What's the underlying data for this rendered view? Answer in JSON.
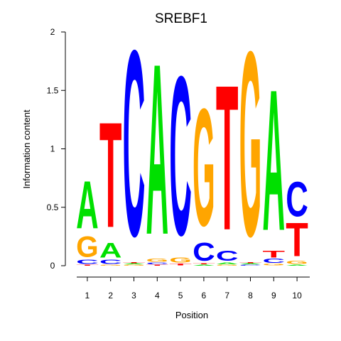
{
  "chart_data": {
    "type": "sequence-logo",
    "title": "SREBF1",
    "xlabel": "Position",
    "ylabel": "Information content",
    "ylim": [
      0,
      2
    ],
    "yticks": [
      "0",
      "0.5",
      "1",
      "1.5",
      "2"
    ],
    "positions": [
      "1",
      "2",
      "3",
      "4",
      "5",
      "6",
      "7",
      "8",
      "9",
      "10"
    ],
    "colors": {
      "A": "#00e000",
      "C": "#0000ff",
      "G": "#ffa500",
      "T": "#ff0000"
    },
    "stacks": [
      [
        {
          "letter": "T",
          "value": 0.01
        },
        {
          "letter": "C",
          "value": 0.04
        },
        {
          "letter": "G",
          "value": 0.21
        },
        {
          "letter": "A",
          "value": 0.48
        }
      ],
      [
        {
          "letter": "G",
          "value": 0.01
        },
        {
          "letter": "C",
          "value": 0.04
        },
        {
          "letter": "A",
          "value": 0.15
        },
        {
          "letter": "T",
          "value": 1.06
        }
      ],
      [
        {
          "letter": "G",
          "value": 0.01
        },
        {
          "letter": "A",
          "value": 0.01
        },
        {
          "letter": "T",
          "value": 0.01
        },
        {
          "letter": "C",
          "value": 1.87
        }
      ],
      [
        {
          "letter": "T",
          "value": 0.01
        },
        {
          "letter": "C",
          "value": 0.02
        },
        {
          "letter": "G",
          "value": 0.03
        },
        {
          "letter": "A",
          "value": 1.72
        }
      ],
      [
        {
          "letter": "T",
          "value": 0.02
        },
        {
          "letter": "G",
          "value": 0.05
        },
        {
          "letter": "C",
          "value": 1.6
        }
      ],
      [
        {
          "letter": "A",
          "value": 0.01
        },
        {
          "letter": "T",
          "value": 0.01
        },
        {
          "letter": "C",
          "value": 0.18
        },
        {
          "letter": "G",
          "value": 1.18
        }
      ],
      [
        {
          "letter": "G",
          "value": 0.01
        },
        {
          "letter": "A",
          "value": 0.02
        },
        {
          "letter": "C",
          "value": 0.1
        },
        {
          "letter": "T",
          "value": 1.46
        }
      ],
      [
        {
          "letter": "C",
          "value": 0.01
        },
        {
          "letter": "A",
          "value": 0.01
        },
        {
          "letter": "T",
          "value": 0.01
        },
        {
          "letter": "G",
          "value": 1.86
        }
      ],
      [
        {
          "letter": "G",
          "value": 0.02
        },
        {
          "letter": "C",
          "value": 0.04
        },
        {
          "letter": "T",
          "value": 0.07
        },
        {
          "letter": "A",
          "value": 1.42
        }
      ],
      [
        {
          "letter": "A",
          "value": 0.01
        },
        {
          "letter": "G",
          "value": 0.03
        },
        {
          "letter": "T",
          "value": 0.34
        },
        {
          "letter": "C",
          "value": 0.35
        }
      ]
    ]
  }
}
